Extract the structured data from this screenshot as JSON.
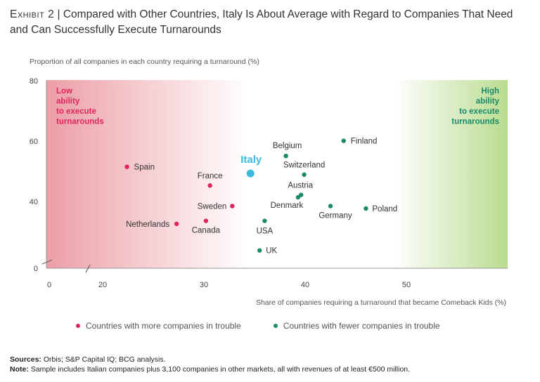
{
  "exhibit": {
    "lead": "Exhibit 2",
    "separator": " | ",
    "title": "Compared with Other Countries, Italy Is About Average with Regard to Companies That Need and Can Successfully Execute Turnarounds"
  },
  "colors": {
    "trouble_more": "#e0245e",
    "trouble_fewer": "#1a8a6a",
    "italy": "#3cb9dc",
    "low_zone": "#ec9ea6",
    "high_zone": "#b9dc8f"
  },
  "zones": {
    "low": "Low\nability\nto execute\nturnarounds",
    "high": "High\nability\nto execute\nturnarounds"
  },
  "legend": {
    "more_trouble": "Countries with more companies in trouble",
    "fewer_trouble": "Countries with fewer companies in trouble"
  },
  "footer": {
    "sources_label": "Sources:",
    "sources_text": " Orbis; S&P Capital IQ; BCG analysis.",
    "note_label": "Note:",
    "note_text": " Sample includes Italian companies plus 3,100 companies in other markets, all with revenues of at least €500 million."
  },
  "chart_data": {
    "type": "scatter",
    "xlabel": "Share of companies requiring a turnaround that became Comeback Kids (%)",
    "ylabel": "Proportion of all companies in each country requiring a turnaround (%)",
    "xlim": [
      0,
      60
    ],
    "ylim": [
      0,
      80
    ],
    "axis_breaks": [
      "x",
      "y"
    ],
    "x_ticks": [
      0,
      20,
      30,
      40,
      50
    ],
    "y_ticks": [
      0,
      40,
      60,
      80
    ],
    "grid": false,
    "series": [
      {
        "name": "Countries with more companies in trouble",
        "color": "#e0245e",
        "points": [
          {
            "label": "Spain",
            "x": 22.4,
            "y": 51.5
          },
          {
            "label": "France",
            "x": 30.6,
            "y": 45.3
          },
          {
            "label": "Sweden",
            "x": 32.8,
            "y": 38.5
          },
          {
            "label": "Netherlands",
            "x": 27.3,
            "y": 32.6
          },
          {
            "label": "Canada",
            "x": 30.2,
            "y": 33.6
          }
        ]
      },
      {
        "name": "Countries with fewer companies in trouble",
        "color": "#1a8a6a",
        "points": [
          {
            "label": "Belgium",
            "x": 38.1,
            "y": 55.1
          },
          {
            "label": "Finland",
            "x": 43.8,
            "y": 60.1
          },
          {
            "label": "Switzerland",
            "x": 39.9,
            "y": 48.9
          },
          {
            "label": "Austria",
            "x": 39.6,
            "y": 42.2
          },
          {
            "label": "Denmark",
            "x": 39.3,
            "y": 41.4
          },
          {
            "label": "Germany",
            "x": 42.5,
            "y": 38.5
          },
          {
            "label": "Poland",
            "x": 46.0,
            "y": 37.7
          },
          {
            "label": "USA",
            "x": 36.0,
            "y": 33.6
          },
          {
            "label": "UK",
            "x": 35.5,
            "y": 23.8
          }
        ]
      },
      {
        "name": "Italy",
        "color": "#3cb9dc",
        "points": [
          {
            "label": "Italy",
            "x": 34.6,
            "y": 49.3
          }
        ]
      }
    ]
  }
}
